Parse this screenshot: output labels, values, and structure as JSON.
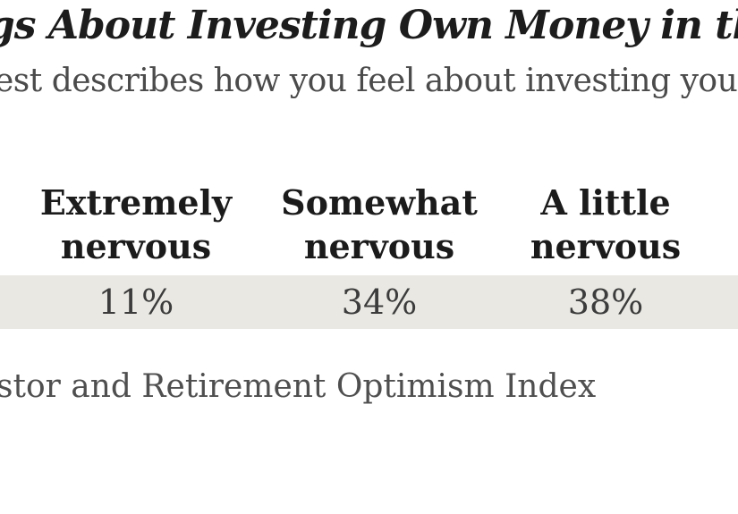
{
  "page": {
    "title_fragment": "gs About Investing Own Money in the Market",
    "subtitle_fragment": "est describes how you feel about investing your own",
    "source_fragment": "stor and Retirement Optimism Index"
  },
  "table": {
    "columns": [
      {
        "header_line1": "Extremely",
        "header_line2": "nervous",
        "value": "11%"
      },
      {
        "header_line1": "Somewhat",
        "header_line2": "nervous",
        "value": "34%"
      },
      {
        "header_line1": "A little",
        "header_line2": "nervous",
        "value": "38%"
      }
    ]
  },
  "colors": {
    "background": "#ffffff",
    "row_band": "#e9e8e3",
    "title_text": "#1c1c1c",
    "header_text": "#1b1b1b",
    "value_text": "#3c3c3c",
    "muted_text": "#4b4b4b"
  },
  "chart_data": {
    "type": "table",
    "title": "gs About Investing Own Money in the Market",
    "subtitle": "est describes how you feel about investing your own",
    "columns": [
      "Extremely nervous",
      "Somewhat nervous",
      "A little nervous"
    ],
    "rows": [
      [
        "11%",
        "34%",
        "38%"
      ]
    ],
    "values": [
      11,
      34,
      38
    ],
    "source": "stor and Retirement Optimism Index",
    "layout": "single data row on full-width shaded band; table cropped at left and right image edges"
  }
}
